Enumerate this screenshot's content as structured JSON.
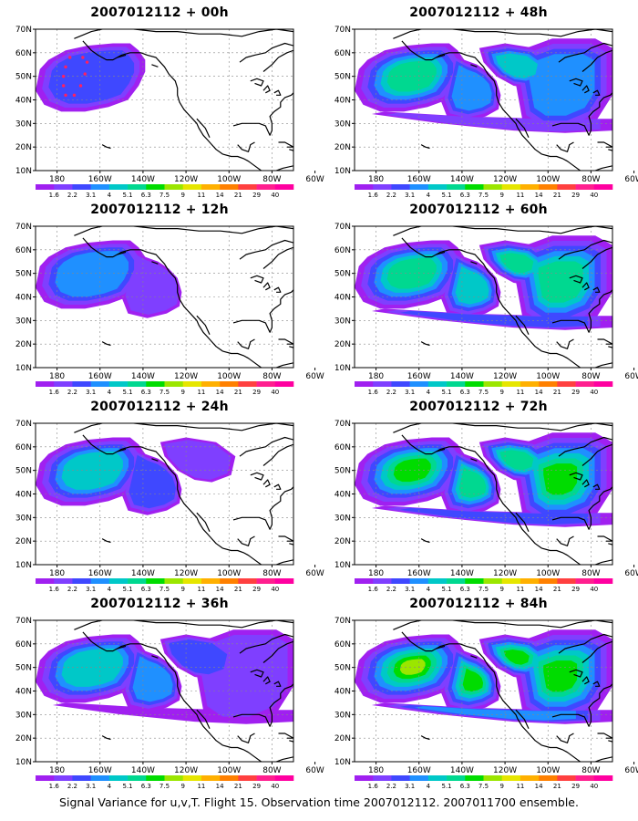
{
  "panels": [
    {
      "title": "2007012112 + 00h",
      "shade": 0,
      "target": true
    },
    {
      "title": "2007012112 + 48h",
      "shade": 4
    },
    {
      "title": "2007012112 + 12h",
      "shade": 1
    },
    {
      "title": "2007012112 + 60h",
      "shade": 5
    },
    {
      "title": "2007012112 + 24h",
      "shade": 2
    },
    {
      "title": "2007012112 + 72h",
      "shade": 6
    },
    {
      "title": "2007012112 + 36h",
      "shade": 3
    },
    {
      "title": "2007012112 + 84h",
      "shade": 7
    }
  ],
  "lat_labels": [
    "70N",
    "60N",
    "50N",
    "40N",
    "30N",
    "20N",
    "10N"
  ],
  "lon_labels": [
    "180",
    "160W",
    "140W",
    "120W",
    "100W",
    "80W",
    "60W"
  ],
  "colorbar": {
    "labels": [
      "1.6",
      "2.2",
      "3.1",
      "4",
      "5.1",
      "6.3",
      "7.5",
      "9",
      "11",
      "14",
      "21",
      "29",
      "40"
    ],
    "colors": [
      "#a020f0",
      "#7f3fff",
      "#3f48ff",
      "#1f90ff",
      "#00c8c8",
      "#00d890",
      "#00dc00",
      "#9be600",
      "#e6e600",
      "#ffb000",
      "#ff8000",
      "#ff4040",
      "#ff1f8f",
      "#ff00a0"
    ]
  },
  "footer": "Signal Variance for u,v,T. Flight 15. Observation time 2007012112. 2007011700 ensemble."
}
